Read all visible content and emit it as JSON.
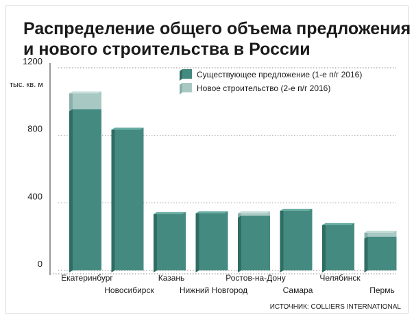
{
  "title_lines": [
    "Распределение общего объема предложения",
    "и нового строительства в России"
  ],
  "source": "ИСТОЧНИК: COLLIERS INTERNATIONAL",
  "colors": {
    "existing": "#458a80",
    "existing_side": "#2f6c62",
    "existing_top": "#6aaea4",
    "new": "#a8c9c3",
    "new_side": "#8ab0a9",
    "new_top": "#c6ddd8",
    "grid": "#a0a0a0",
    "axis": "#333333",
    "frame": "#d9d9d9"
  },
  "chart_data": {
    "type": "bar",
    "stacked": true,
    "ylabel": "тыс. кв. м",
    "ylim": [
      0,
      1200
    ],
    "yticks": [
      0,
      400,
      800,
      1200
    ],
    "categories": [
      "Екатеринбург",
      "Новосибирск",
      "Казань",
      "Нижний Новгород",
      "Ростов-на-Дону",
      "Самара",
      "Челябинск",
      "Пермь"
    ],
    "series": [
      {
        "name": "Существующее предложение (1-е п/г 2016)",
        "values": [
          955,
          845,
          345,
          350,
          325,
          365,
          280,
          200
        ]
      },
      {
        "name": "Новое строительство (2-е п/г 2016)",
        "values": [
          105,
          0,
          0,
          0,
          25,
          0,
          0,
          35
        ]
      }
    ],
    "grid": true,
    "legend_position": "top-right"
  }
}
